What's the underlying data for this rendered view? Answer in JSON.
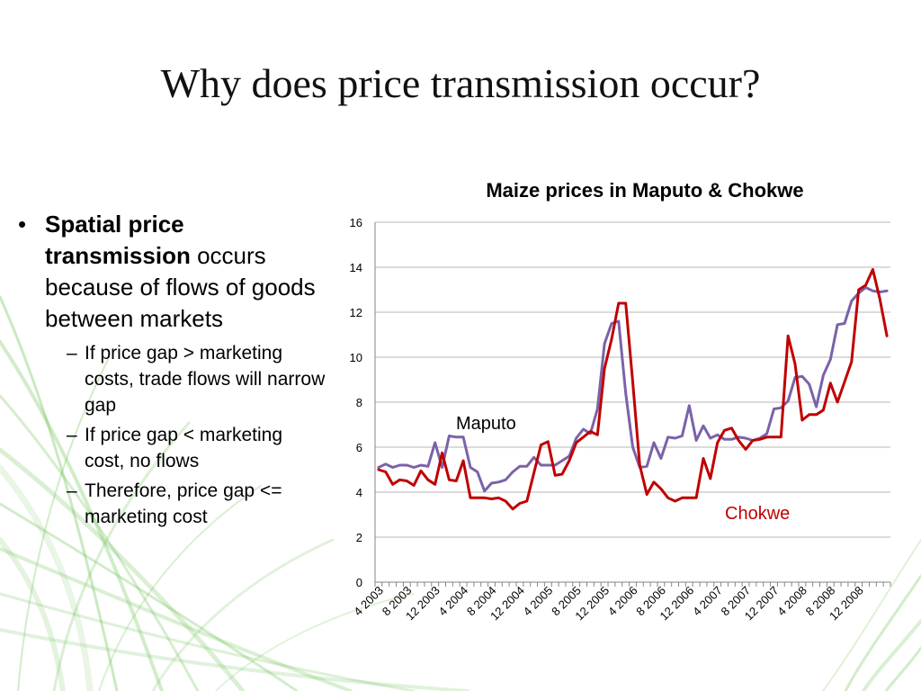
{
  "slide": {
    "title": "Why does price transmission occur?"
  },
  "bullets": {
    "main_bold": "Spatial price transmission",
    "main_rest": "occurs because of flows of goods between markets",
    "bullet_glyph": "•",
    "dash_glyph": "–",
    "subs": [
      "If price gap > marketing costs, trade flows will narrow gap",
      "If price gap < marketing cost, no flows",
      "Therefore, price gap <= marketing cost"
    ]
  },
  "chart_data": {
    "type": "line",
    "title": "Maize prices in Maputo & Chokwe",
    "xlabel": "",
    "ylabel": "",
    "ylim": [
      0,
      16
    ],
    "yticks": [
      0,
      2,
      4,
      6,
      8,
      10,
      12,
      14,
      16
    ],
    "grid": true,
    "x_tick_labels": [
      "4 2003",
      "8 2003",
      "12 2003",
      "4 2004",
      "8 2004",
      "12 2004",
      "4 2005",
      "8 2005",
      "12 2005",
      "4 2006",
      "8 2006",
      "12 2006",
      "4 2007",
      "8 2007",
      "12 2007",
      "4 2008",
      "8 2008",
      "12 2008"
    ],
    "x_start": "2003-04",
    "x_end": "2008-12",
    "series": [
      {
        "name": "Maputo",
        "color": "#7B62A8",
        "values": [
          5.1,
          5.25,
          5.1,
          5.2,
          5.2,
          5.1,
          5.2,
          5.15,
          6.2,
          5.1,
          6.5,
          6.45,
          6.45,
          5.1,
          4.9,
          4.05,
          4.4,
          4.45,
          4.55,
          4.9,
          5.15,
          5.15,
          5.55,
          5.2,
          5.2,
          5.2,
          5.4,
          5.6,
          6.4,
          6.8,
          6.6,
          7.7,
          10.6,
          11.5,
          11.6,
          8.4,
          6.0,
          5.1,
          5.15,
          6.2,
          5.5,
          6.45,
          6.4,
          6.5,
          7.85,
          6.3,
          6.95,
          6.4,
          6.55,
          6.35,
          6.35,
          6.45,
          6.4,
          6.3,
          6.4,
          6.6,
          7.7,
          7.75,
          8.05,
          9.1,
          9.15,
          8.8,
          7.8,
          9.2,
          9.9,
          11.45,
          11.5,
          12.5,
          12.85,
          13.1,
          12.95,
          12.9,
          12.95
        ]
      },
      {
        "name": "Chokwe",
        "color": "#C00000",
        "values": [
          5.0,
          4.9,
          4.35,
          4.55,
          4.5,
          4.3,
          4.95,
          4.55,
          4.35,
          5.75,
          4.55,
          4.5,
          5.4,
          3.75,
          3.75,
          3.75,
          3.7,
          3.75,
          3.6,
          3.25,
          3.5,
          3.6,
          4.85,
          6.1,
          6.25,
          4.75,
          4.8,
          5.4,
          6.2,
          6.45,
          6.7,
          6.55,
          9.5,
          10.8,
          12.4,
          12.4,
          8.9,
          5.2,
          3.9,
          4.45,
          4.15,
          3.75,
          3.6,
          3.75,
          3.75,
          3.75,
          5.5,
          4.6,
          6.2,
          6.75,
          6.85,
          6.3,
          5.9,
          6.3,
          6.35,
          6.45,
          6.45,
          6.45,
          10.95,
          9.7,
          7.2,
          7.45,
          7.45,
          7.65,
          8.85,
          8.0,
          8.9,
          9.8,
          13.0,
          13.2,
          13.9,
          12.6,
          10.95
        ]
      }
    ],
    "annotations": [
      {
        "text": "Maputo",
        "color": "#000000"
      },
      {
        "text": "Chokwe",
        "color": "#C00000"
      }
    ]
  },
  "theme": {
    "decor_green": "#6BBF4E",
    "axis_color": "#868686",
    "grid_color": "#B7B7B7"
  }
}
